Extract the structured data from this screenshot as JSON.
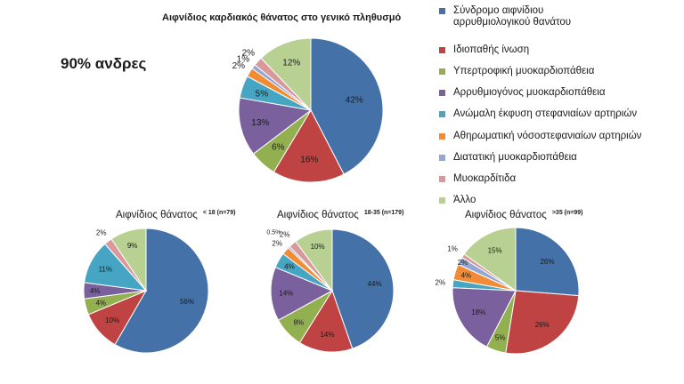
{
  "colors": [
    "#4472A8",
    "#BF4342",
    "#93B050",
    "#7B609E",
    "#46A5C3",
    "#F18C35",
    "#94A7D4",
    "#D99899",
    "#B8D192"
  ],
  "note": "90% ανδρες",
  "legend": [
    "Σύνδρομο αιφνίδιου αρρυθμιολογικού θανάτου",
    "Ιδιοπαθής ίνωση",
    "Υπερτροφική μυοκαρδιοπάθεια",
    "Αρρυθμιογόνος  μυοκαρδιοπάθεια",
    "Ανώμαλη έκφυση στεφανιαίων αρτηριών",
    "Αθηρωματική νόσοστεφανιαίων αρτηριών",
    "Διατατική μυοκαρδιοπάθεια",
    "Μυοκαρδίτιδα",
    "Άλλο"
  ],
  "chart_data": [
    {
      "type": "pie",
      "title": "Αιφνίδιος καρδιακός θάνατος στο γενικό πληθυσμό",
      "subtitle": "",
      "categories": [
        "Σύνδρομο αιφνίδιου αρρυθμιολογικού θανάτου",
        "Ιδιοπαθής ίνωση",
        "Υπερτροφική μυοκαρδιοπάθεια",
        "Αρρυθμιογόνος  μυοκαρδιοπάθεια",
        "Ανώμαλη έκφυση στεφανιαίων αρτηριών",
        "Αθηρωματική νόσοστεφανιαίων αρτηριών",
        "Διατατική μυοκαρδιοπάθεια",
        "Μυοκαρδίτιδα",
        "Άλλο"
      ],
      "values": [
        42,
        16,
        6,
        13,
        5,
        2,
        1,
        2,
        12
      ],
      "labels": [
        "42%",
        "16%",
        "6%",
        "13%",
        "5%",
        "2%",
        "1%",
        "2%",
        "12%"
      ]
    },
    {
      "type": "pie",
      "title": "Αιφνίδιος  θάνατος",
      "subtitle": "< 18 (n=79)",
      "categories": [
        "Σύνδρομο αιφνίδιου αρρυθμιολογικού θανάτου",
        "Ιδιοπαθής ίνωση",
        "Υπερτροφική μυοκαρδιοπάθεια",
        "Αρρυθμιογόνος  μυοκαρδιοπάθεια",
        "Ανώμαλη έκφυση στεφανιαίων αρτηριών",
        "Αθηρωματική νόσοστεφανιαίων αρτηριών",
        "Διατατική μυοκαρδιοπάθεια",
        "Μυοκαρδίτιδα",
        "Άλλο"
      ],
      "values": [
        56,
        10,
        4,
        4,
        11,
        0,
        0,
        2,
        9
      ],
      "labels": [
        "56%",
        "10%",
        "4%",
        "4%",
        "11%",
        "",
        "",
        "2%",
        "9%"
      ]
    },
    {
      "type": "pie",
      "title": "Αιφνίδιος  θάνατος",
      "subtitle": "18-35 (n=179)",
      "categories": [
        "Σύνδρομο αιφνίδιου αρρυθμιολογικού θανάτου",
        "Ιδιοπαθής ίνωση",
        "Υπερτροφική μυοκαρδιοπάθεια",
        "Αρρυθμιογόνος  μυοκαρδιοπάθεια",
        "Ανώμαλη έκφυση στεφανιαίων αρτηριών",
        "Αθηρωματική νόσοστεφανιαίων αρτηριών",
        "Διατατική μυοκαρδιοπάθεια",
        "Μυοκαρδίτιδα",
        "Άλλο"
      ],
      "values": [
        44,
        14,
        8,
        14,
        4,
        2,
        0.5,
        2,
        10
      ],
      "labels": [
        "44%",
        "14%",
        "8%",
        "14%",
        "4%",
        "2%",
        "0.5%",
        "2%",
        "10%"
      ]
    },
    {
      "type": "pie",
      "title": "Αιφνίδιος  θάνατος",
      "subtitle": ">35 (n=99)",
      "categories": [
        "Σύνδρομο αιφνίδιου αρρυθμιολογικού θανάτου",
        "Ιδιοπαθής ίνωση",
        "Υπερτροφική μυοκαρδιοπάθεια",
        "Αρρυθμιογόνος  μυοκαρδιοπάθεια",
        "Ανώμαλη έκφυση στεφανιαίων αρτηριών",
        "Αθηρωματική νόσοστεφανιαίων αρτηριών",
        "Διατατική μυοκαρδιοπάθεια",
        "Μυοκαρδίτιδα",
        "Άλλο"
      ],
      "values": [
        26,
        26,
        5,
        18,
        2,
        4,
        2,
        1,
        15
      ],
      "labels": [
        "26%",
        "26%",
        "5%",
        "18%",
        "2%",
        "4%",
        "2%",
        "1%",
        "15%"
      ]
    }
  ]
}
